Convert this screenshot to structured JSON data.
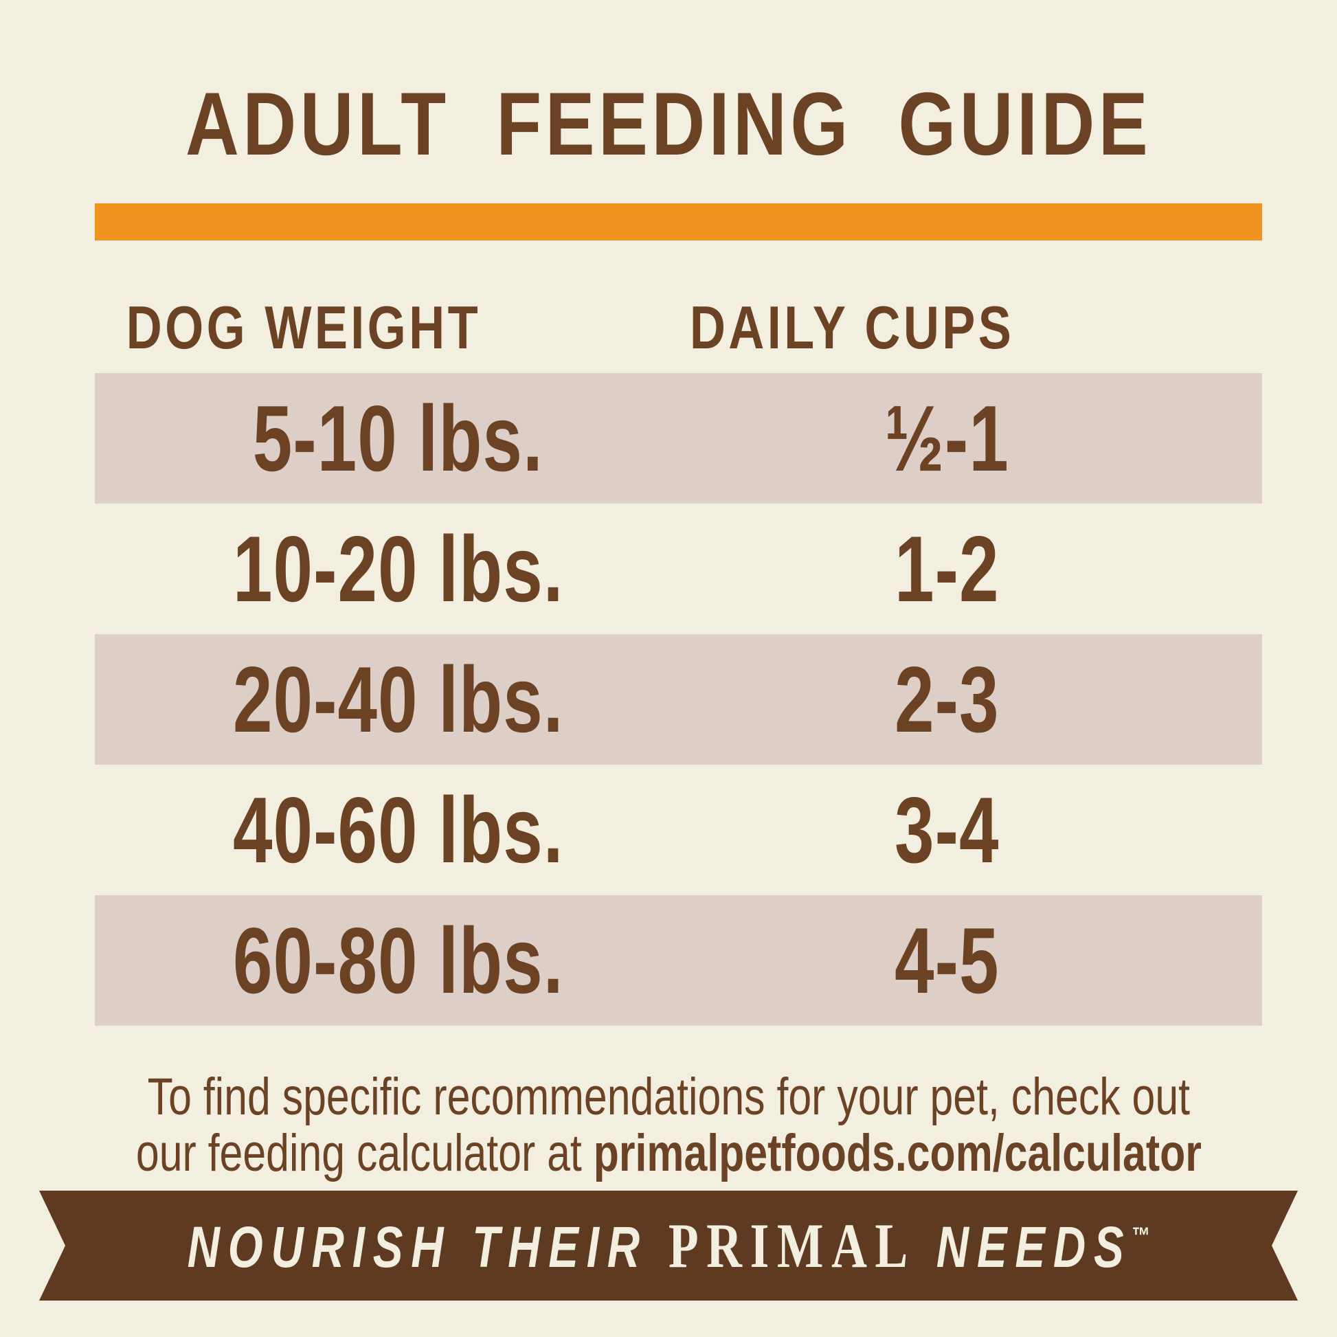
{
  "title": "ADULT FEEDING GUIDE",
  "table": {
    "headers": {
      "weight": "DOG WEIGHT",
      "cups": "DAILY CUPS"
    },
    "rows": [
      {
        "weight": "5-10 lbs.",
        "cups": "½-1"
      },
      {
        "weight": "10-20 lbs.",
        "cups": "1-2"
      },
      {
        "weight": "20-40 lbs.",
        "cups": "2-3"
      },
      {
        "weight": "40-60 lbs.",
        "cups": "3-4"
      },
      {
        "weight": "60-80 lbs.",
        "cups": "4-5"
      }
    ]
  },
  "footer": {
    "line1": "To find specific recommendations for your pet, check out",
    "line2_prefix": "our feeding calculator at ",
    "line2_url": "primalpetfoods.com/calculator"
  },
  "banner": {
    "tagline_start": "NOURISH THEIR ",
    "brand": "PRIMAL",
    "tagline_end": " NEEDS",
    "trademark": "™"
  },
  "colors": {
    "background": "#F2EFE1",
    "text_brown": "#6B4223",
    "accent_orange": "#F0921E",
    "row_highlight": "#DDCEC7",
    "banner_brown": "#5E3B20",
    "banner_text": "#F2EFE1"
  }
}
